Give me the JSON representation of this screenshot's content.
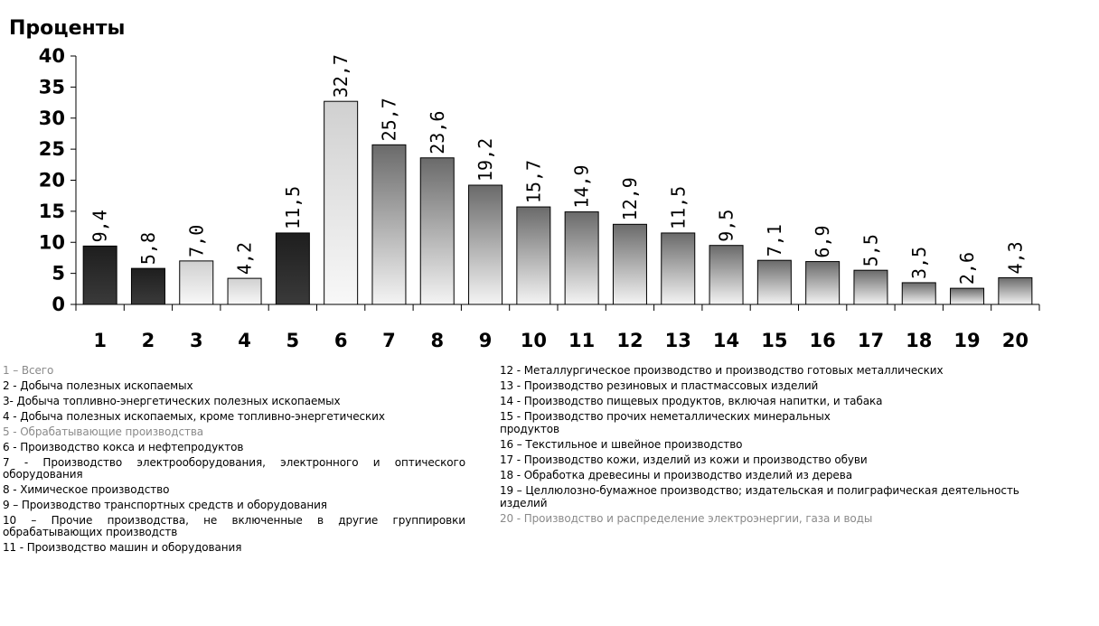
{
  "chart_data": {
    "type": "bar",
    "title": "Проценты",
    "xlabel": "",
    "ylabel": "",
    "ylim": [
      0,
      40
    ],
    "yticks": [
      "0",
      "5",
      "10",
      "15",
      "20",
      "25",
      "30",
      "35",
      "40"
    ],
    "categories": [
      "1",
      "2",
      "3",
      "4",
      "5",
      "6",
      "7",
      "8",
      "9",
      "10",
      "11",
      "12",
      "13",
      "14",
      "15",
      "16",
      "17",
      "18",
      "19",
      "20"
    ],
    "values": [
      9.4,
      5.8,
      7.0,
      4.2,
      11.5,
      32.7,
      25.7,
      23.6,
      19.2,
      15.7,
      14.9,
      12.9,
      11.5,
      9.5,
      7.1,
      6.9,
      5.5,
      3.5,
      2.6,
      4.3
    ],
    "data_labels": [
      "9,4",
      "5,8",
      "7,0",
      "4,2",
      "11,5",
      "32,7",
      "25,7",
      "23,6",
      "19,2",
      "15,7",
      "14,9",
      "12,9",
      "11,5",
      "9,5",
      "7,1",
      "6,9",
      "5,5",
      "3,5",
      "2,6",
      "4,3"
    ],
    "grid": false,
    "colors": {
      "dark": "#222222",
      "gradient_top": "#6e6e6e",
      "gradient_bottom": "#f4f4f4",
      "light_top": "#cfcfcf",
      "light_bottom": "#f8f8f8"
    }
  },
  "legend": {
    "left": [
      {
        "text": "1 – Всего",
        "muted": true
      },
      {
        "text": "2 - Добыча полезных ископаемых",
        "muted": false
      },
      {
        "text": "3- Добыча топливно-энергетических полезных ископаемых",
        "muted": false
      },
      {
        "text": "4 - Добыча полезных ископаемых, кроме топливно-энергетических",
        "muted": false
      },
      {
        "text": "5 - Обрабатывающие производства",
        "muted": true
      },
      {
        "text": "6 - Производство кокса и нефтепродуктов",
        "muted": false
      },
      {
        "text": "7 - Производство электрооборудования, электронного и оптического оборудования",
        "muted": false
      },
      {
        "text": "8 - Химическое производство",
        "muted": false
      },
      {
        "text": "9 – Производство транспортных средств и оборудования",
        "muted": false
      },
      {
        "text": "10 – Прочие производства, не включенные в другие группировки обрабатывающих производств",
        "muted": false
      },
      {
        "text": "11 - Производство машин и оборудования",
        "muted": false
      }
    ],
    "right": [
      {
        "text": "12 - Металлургическое производство и производство готовых металлических",
        "muted": false
      },
      {
        "text": "13 - Производство резиновых и пластмассовых изделий",
        "muted": false
      },
      {
        "text": "14 - Производство пищевых продуктов, включая напитки, и табака",
        "muted": false
      },
      {
        "text": "15 - Производство прочих неметаллических минеральных",
        "muted": false,
        "tight": true
      },
      {
        "text": "продуктов",
        "muted": false
      },
      {
        "text": "16 – Текстильное и швейное производство",
        "muted": false
      },
      {
        "text": "17 - Производство кожи, изделий из кожи и производство обуви",
        "muted": false
      },
      {
        "text": "18 - Обработка древесины и производство изделий из дерева",
        "muted": false
      },
      {
        "text": "19 – Целлюлозно-бумажное производство; издательская и полиграфическая деятельность",
        "muted": false,
        "tight": true
      },
      {
        "text": "изделий",
        "muted": false
      },
      {
        "text": "20 - Производство и распределение электроэнергии, газа и воды",
        "muted": true
      }
    ]
  }
}
